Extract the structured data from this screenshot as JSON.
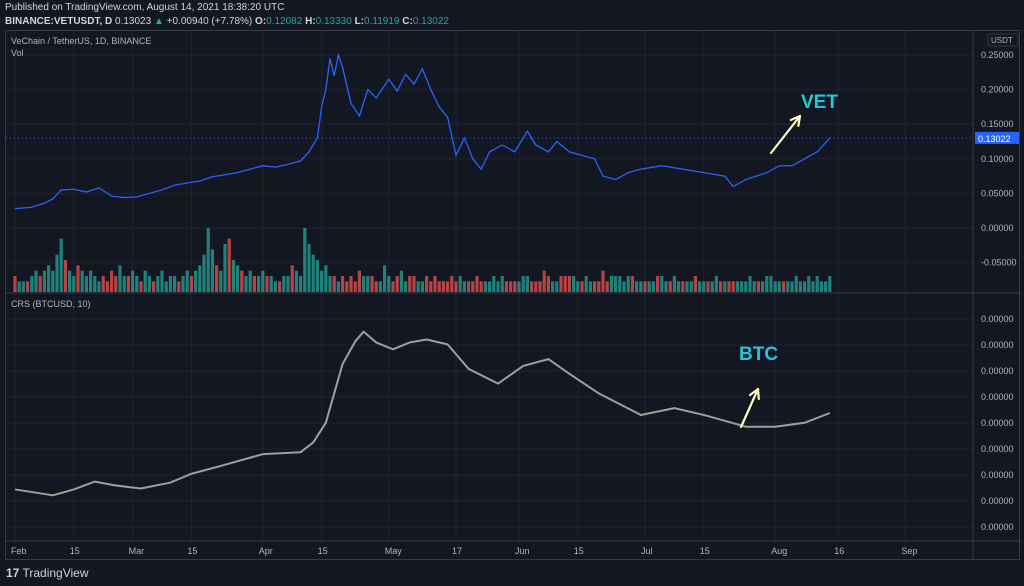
{
  "header": {
    "published": "Published on TradingView.com, August 14, 2021 18:38:20 UTC",
    "symbol": "BINANCE:VETUSDT, D",
    "last": "0.13023",
    "change": "+0.00940 (+7.78%)",
    "o_label": "O:",
    "o": "0.12082",
    "h_label": "H:",
    "h": "0.13330",
    "l_label": "L:",
    "l": "0.11919",
    "c_label": "C:",
    "c": "0.13022"
  },
  "legend": {
    "main": "VeChain / TetherUS, 1D, BINANCE",
    "vol": "Vol",
    "crs": "CRS (BTCUSD, 10)"
  },
  "footer": {
    "brand": "TradingView",
    "logo": "17"
  },
  "colors": {
    "price_line": "#2962ff",
    "crs_line": "#9aa39a",
    "up": "#26a69a",
    "down": "#ef5350",
    "annotation_text": "#26c6da",
    "annotation_arrow": "#fff9c4",
    "last_price_badge": "#2962ff"
  },
  "chart_data": [
    {
      "type": "line",
      "title": "VeChain / TetherUS, 1D, BINANCE",
      "currency": "USDT",
      "last_price_label": "0.13022",
      "y_ticks": [
        "0.25000",
        "0.20000",
        "0.15000",
        "0.10000",
        "0.05000",
        "0.00000",
        "-0.05000"
      ],
      "ylim": [
        -0.07,
        0.27
      ],
      "x_ticks": [
        "Feb",
        "15",
        "Mar",
        "15",
        "Apr",
        "15",
        "May",
        "17",
        "Jun",
        "15",
        "Jul",
        "15",
        "Aug",
        "16",
        "Sep"
      ],
      "x_tick_dates": [
        "2021-02-01",
        "2021-02-15",
        "2021-03-01",
        "2021-03-15",
        "2021-04-01",
        "2021-04-15",
        "2021-05-01",
        "2021-05-17",
        "2021-06-01",
        "2021-06-15",
        "2021-07-01",
        "2021-07-15",
        "2021-08-01",
        "2021-08-16",
        "2021-09-01"
      ],
      "xlim": [
        "2021-01-31",
        "2021-09-30"
      ],
      "series": [
        {
          "points": [
            [
              "2021-02-01",
              0.028
            ],
            [
              "2021-02-05",
              0.03
            ],
            [
              "2021-02-08",
              0.036
            ],
            [
              "2021-02-10",
              0.042
            ],
            [
              "2021-02-12",
              0.055
            ],
            [
              "2021-02-15",
              0.056
            ],
            [
              "2021-02-18",
              0.052
            ],
            [
              "2021-02-21",
              0.058
            ],
            [
              "2021-02-24",
              0.046
            ],
            [
              "2021-02-27",
              0.044
            ],
            [
              "2021-03-02",
              0.045
            ],
            [
              "2021-03-05",
              0.05
            ],
            [
              "2021-03-08",
              0.055
            ],
            [
              "2021-03-11",
              0.062
            ],
            [
              "2021-03-14",
              0.065
            ],
            [
              "2021-03-17",
              0.068
            ],
            [
              "2021-03-20",
              0.074
            ],
            [
              "2021-03-23",
              0.077
            ],
            [
              "2021-03-26",
              0.08
            ],
            [
              "2021-03-29",
              0.085
            ],
            [
              "2021-04-01",
              0.09
            ],
            [
              "2021-04-04",
              0.088
            ],
            [
              "2021-04-07",
              0.092
            ],
            [
              "2021-04-10",
              0.097
            ],
            [
              "2021-04-12",
              0.11
            ],
            [
              "2021-04-14",
              0.13
            ],
            [
              "2021-04-15",
              0.175
            ],
            [
              "2021-04-16",
              0.2
            ],
            [
              "2021-04-17",
              0.245
            ],
            [
              "2021-04-18",
              0.22
            ],
            [
              "2021-04-19",
              0.25
            ],
            [
              "2021-04-20",
              0.232
            ],
            [
              "2021-04-22",
              0.18
            ],
            [
              "2021-04-24",
              0.162
            ],
            [
              "2021-04-26",
              0.2
            ],
            [
              "2021-04-28",
              0.188
            ],
            [
              "2021-05-01",
              0.215
            ],
            [
              "2021-05-03",
              0.198
            ],
            [
              "2021-05-05",
              0.222
            ],
            [
              "2021-05-07",
              0.208
            ],
            [
              "2021-05-09",
              0.23
            ],
            [
              "2021-05-11",
              0.2
            ],
            [
              "2021-05-13",
              0.175
            ],
            [
              "2021-05-15",
              0.16
            ],
            [
              "2021-05-17",
              0.105
            ],
            [
              "2021-05-19",
              0.13
            ],
            [
              "2021-05-21",
              0.1
            ],
            [
              "2021-05-23",
              0.085
            ],
            [
              "2021-05-25",
              0.11
            ],
            [
              "2021-05-28",
              0.12
            ],
            [
              "2021-05-31",
              0.11
            ],
            [
              "2021-06-03",
              0.14
            ],
            [
              "2021-06-05",
              0.12
            ],
            [
              "2021-06-08",
              0.11
            ],
            [
              "2021-06-10",
              0.125
            ],
            [
              "2021-06-13",
              0.11
            ],
            [
              "2021-06-16",
              0.105
            ],
            [
              "2021-06-19",
              0.1
            ],
            [
              "2021-06-21",
              0.075
            ],
            [
              "2021-06-24",
              0.07
            ],
            [
              "2021-06-27",
              0.08
            ],
            [
              "2021-06-30",
              0.085
            ],
            [
              "2021-07-05",
              0.09
            ],
            [
              "2021-07-10",
              0.085
            ],
            [
              "2021-07-15",
              0.08
            ],
            [
              "2021-07-20",
              0.075
            ],
            [
              "2021-07-22",
              0.06
            ],
            [
              "2021-07-25",
              0.07
            ],
            [
              "2021-07-30",
              0.08
            ],
            [
              "2021-08-02",
              0.09
            ],
            [
              "2021-08-05",
              0.09
            ],
            [
              "2021-08-08",
              0.1
            ],
            [
              "2021-08-11",
              0.11
            ],
            [
              "2021-08-14",
              0.13
            ]
          ]
        }
      ],
      "annotation": "VET"
    },
    {
      "type": "bar",
      "title": "Vol",
      "values": [
        3,
        2,
        2,
        2,
        3,
        4,
        3,
        4,
        5,
        4,
        7,
        10,
        6,
        4,
        3,
        5,
        4,
        3,
        4,
        3,
        2,
        3,
        2,
        4,
        3,
        5,
        3,
        3,
        4,
        3,
        2,
        4,
        3,
        2,
        3,
        4,
        2,
        3,
        3,
        2,
        3,
        4,
        3,
        4,
        5,
        7,
        12,
        8,
        5,
        4,
        9,
        10,
        6,
        5,
        4,
        3,
        4,
        3,
        3,
        4,
        3,
        3,
        2,
        2,
        3,
        3,
        5,
        4,
        3,
        12,
        9,
        7,
        6,
        4,
        5,
        3,
        3,
        2,
        3,
        2,
        3,
        2,
        4,
        3,
        3,
        3,
        2,
        2,
        5,
        3,
        2,
        3,
        4,
        2,
        3,
        3,
        2,
        2,
        3,
        2,
        3,
        2,
        2,
        2,
        3,
        2,
        3,
        2,
        2,
        2,
        3,
        2,
        2,
        2,
        3,
        2,
        3,
        2,
        2,
        2,
        2,
        3,
        3,
        2,
        2,
        2,
        4,
        3,
        2,
        2,
        3,
        3,
        3,
        3,
        2,
        2,
        3,
        2,
        2,
        2,
        4,
        2,
        3,
        3,
        3,
        2,
        3,
        3,
        2,
        2,
        2,
        2,
        2,
        3,
        3,
        2,
        2,
        3,
        2,
        2,
        2,
        2,
        3,
        2,
        2,
        2,
        2,
        3,
        2,
        2,
        2,
        2,
        2,
        2,
        2,
        3,
        2,
        2,
        2,
        3,
        3,
        2,
        2,
        2,
        2,
        2,
        3,
        2,
        2,
        3,
        2,
        3,
        2,
        2,
        3
      ]
    },
    {
      "type": "line",
      "title": "CRS (BTCUSD, 10)",
      "y_ticks": [
        "0.00000",
        "0.00000",
        "0.00000",
        "0.00000",
        "0.00000",
        "0.00000",
        "0.00000",
        "0.00000",
        "0.00000"
      ],
      "series": [
        {
          "points": [
            [
              "2021-02-01",
              22
            ],
            [
              "2021-02-10",
              16
            ],
            [
              "2021-02-15",
              22
            ],
            [
              "2021-02-20",
              30
            ],
            [
              "2021-02-25",
              26
            ],
            [
              "2021-03-03",
              23
            ],
            [
              "2021-03-10",
              29
            ],
            [
              "2021-03-15",
              38
            ],
            [
              "2021-03-22",
              46
            ],
            [
              "2021-04-01",
              58
            ],
            [
              "2021-04-10",
              60
            ],
            [
              "2021-04-13",
              70
            ],
            [
              "2021-04-16",
              90
            ],
            [
              "2021-04-20",
              150
            ],
            [
              "2021-04-23",
              173
            ],
            [
              "2021-04-25",
              183
            ],
            [
              "2021-04-28",
              172
            ],
            [
              "2021-05-02",
              165
            ],
            [
              "2021-05-06",
              172
            ],
            [
              "2021-05-10",
              175
            ],
            [
              "2021-05-15",
              170
            ],
            [
              "2021-05-20",
              145
            ],
            [
              "2021-05-27",
              130
            ],
            [
              "2021-06-02",
              148
            ],
            [
              "2021-06-08",
              155
            ],
            [
              "2021-06-13",
              140
            ],
            [
              "2021-06-20",
              120
            ],
            [
              "2021-06-30",
              98
            ],
            [
              "2021-07-08",
              105
            ],
            [
              "2021-07-15",
              98
            ],
            [
              "2021-07-25",
              86
            ],
            [
              "2021-08-01",
              86
            ],
            [
              "2021-08-08",
              90
            ],
            [
              "2021-08-14",
              100
            ]
          ]
        }
      ],
      "annotation": "BTC"
    }
  ]
}
